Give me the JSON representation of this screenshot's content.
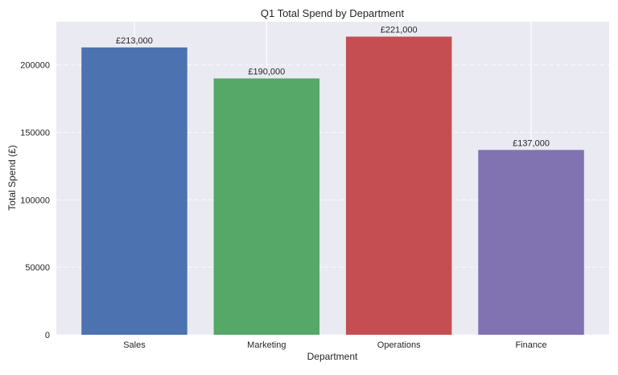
{
  "chart_data": {
    "type": "bar",
    "title": "Q1 Total Spend by Department",
    "xlabel": "Department",
    "ylabel": "Total Spend (£)",
    "categories": [
      "Sales",
      "Marketing",
      "Operations",
      "Finance"
    ],
    "values": [
      213000,
      190000,
      221000,
      137000
    ],
    "data_labels": [
      "£213,000",
      "£190,000",
      "£221,000",
      "£137,000"
    ],
    "colors": [
      "#4c72b0",
      "#55a868",
      "#c44e52",
      "#8172b2"
    ],
    "ylim": [
      0,
      232050
    ],
    "yticks": [
      0,
      50000,
      100000,
      150000,
      200000
    ],
    "ytick_labels": [
      "0",
      "50000",
      "100000",
      "150000",
      "200000"
    ],
    "grid": true,
    "background_color": "#eaeaf2"
  }
}
